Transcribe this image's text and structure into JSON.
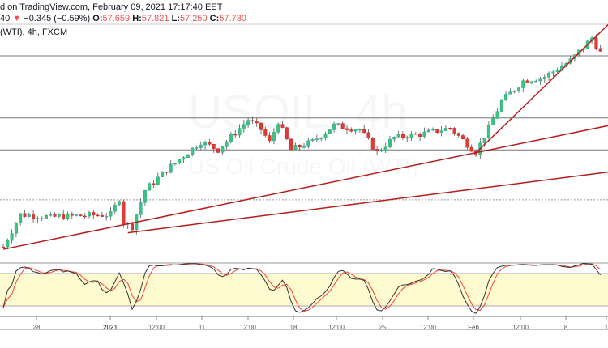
{
  "header": {
    "published": "d on TradingView.com, February 09, 2021 17:17:40 EET",
    "last_fragment": "40",
    "change": "−0.345 (−0.59%)",
    "o_label": "O:",
    "o": "57.659",
    "h_label": "H:",
    "h": "57.821",
    "l_label": "L:",
    "l": "57.250",
    "c_label": "C:",
    "c": "57.730",
    "symbol": "(WTI), 4h, FXCM"
  },
  "watermark": {
    "symbol": "USOIL, 4h",
    "name": "US Oil Crude Oil (WTI)"
  },
  "colors": {
    "up": "#26a69a",
    "up_fill": "#3cc37a",
    "down": "#e53935",
    "trend": "#b71c1c",
    "band": "#fffbd0",
    "k": "#333333",
    "d": "#f44336"
  },
  "chart_data": {
    "type": "candlestick",
    "title": "USOIL (WTI), 4h, FXCM",
    "price_waypoints": [
      {
        "i": 0,
        "p": 47.55
      },
      {
        "i": 4,
        "p": 49.27
      },
      {
        "i": 11,
        "p": 49.14
      },
      {
        "i": 25,
        "p": 49.27
      },
      {
        "i": 27,
        "p": 50.13
      },
      {
        "i": 28,
        "p": 48.84
      },
      {
        "i": 30,
        "p": 48.63
      },
      {
        "i": 33,
        "p": 50.56
      },
      {
        "i": 38,
        "p": 51.64
      },
      {
        "i": 46,
        "p": 53.14
      },
      {
        "i": 50,
        "p": 52.71
      },
      {
        "i": 57,
        "p": 54.3
      },
      {
        "i": 60,
        "p": 53.79
      },
      {
        "i": 62,
        "p": 53.1
      },
      {
        "i": 64,
        "p": 54.22
      },
      {
        "i": 67,
        "p": 52.71
      },
      {
        "i": 72,
        "p": 53.14
      },
      {
        "i": 77,
        "p": 54.0
      },
      {
        "i": 83,
        "p": 53.79
      },
      {
        "i": 87,
        "p": 52.58
      },
      {
        "i": 91,
        "p": 53.36
      },
      {
        "i": 98,
        "p": 53.57
      },
      {
        "i": 104,
        "p": 53.87
      },
      {
        "i": 110,
        "p": 52.58
      },
      {
        "i": 113,
        "p": 53.87
      },
      {
        "i": 116,
        "p": 55.29
      },
      {
        "i": 121,
        "p": 56.37
      },
      {
        "i": 126,
        "p": 56.58
      },
      {
        "i": 132,
        "p": 57.44
      },
      {
        "i": 137,
        "p": 58.65
      },
      {
        "i": 139,
        "p": 57.87
      }
    ],
    "horizontal_levels": [
      57.7,
      54.4,
      52.7
    ],
    "dashed_level": 50.05,
    "trendlines": [
      {
        "from": {
          "i": 0,
          "p": 47.42
        },
        "to": {
          "i": 141,
          "p": 54.0
        }
      },
      {
        "from": {
          "i": 29,
          "p": 48.3
        },
        "to": {
          "i": 141,
          "p": 51.53
        }
      },
      {
        "from": {
          "i": 110,
          "p": 52.54
        },
        "to": {
          "i": 141,
          "p": 59.4
        }
      }
    ],
    "oscillator": {
      "type": "stochastic",
      "upper": 80,
      "lower": 20,
      "range": [
        0,
        100
      ]
    },
    "x_ticks": [
      "28",
      "2021",
      "12:00",
      "11",
      "12:00",
      "18",
      "12:00",
      "25",
      "12:00",
      "Feb",
      "12:00",
      "8",
      "1"
    ]
  }
}
